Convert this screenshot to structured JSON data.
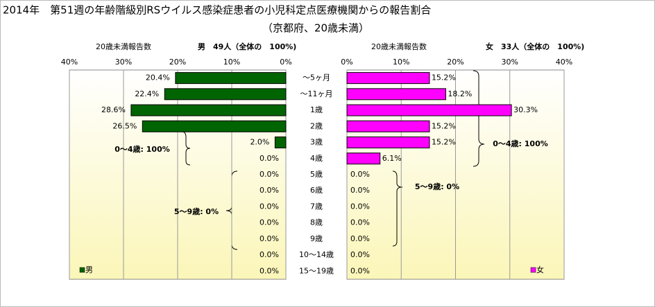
{
  "title": "2014年　第51週の年齢階級別RSウイルス感染症患者の小児科定点医療機関からの報告割合",
  "subtitle": "（京都府、20歳未満）",
  "chart_data": [
    {
      "type": "hbar",
      "header": "20歳未満報告数",
      "total_label": "男　49人（全体の　100%)",
      "categories": [
        "～5ヶ月",
        "～11ヶ月",
        "1歳",
        "2歳",
        "3歳",
        "4歳",
        "5歳",
        "6歳",
        "7歳",
        "8歳",
        "9歳",
        "10～14歳",
        "15～19歳"
      ],
      "series": [
        {
          "name": "男",
          "color": "#006400",
          "values": [
            20.4,
            22.4,
            28.6,
            26.5,
            2.0,
            0,
            0,
            0,
            0,
            0,
            0,
            0,
            0
          ],
          "value_labels": [
            "20.4%",
            "22.4%",
            "28.6%",
            "26.5%",
            "2.0%",
            "0.0%",
            "0.0%",
            "0.0%",
            "0.0%",
            "0.0%",
            "0.0%",
            "0.0%",
            "0.0%"
          ]
        }
      ],
      "xlim": [
        40,
        0
      ],
      "xticks": [
        {
          "value": 40,
          "label": "40%"
        },
        {
          "value": 30,
          "label": "30%"
        },
        {
          "value": 20,
          "label": "20%"
        },
        {
          "value": 10,
          "label": "10%"
        },
        {
          "value": 0,
          "label": "0%"
        }
      ],
      "grid": true,
      "annotations": [
        "0～4歳: 100%",
        "5～9歳: 0%"
      ]
    },
    {
      "type": "hbar",
      "header": "20歳未満報告数",
      "total_label": "女　33人（全体の　100%)",
      "series": [
        {
          "name": "女",
          "color": "#ff00ff",
          "values": [
            15.2,
            18.2,
            30.3,
            15.2,
            15.2,
            6.1,
            0,
            0,
            0,
            0,
            0,
            0,
            0
          ],
          "value_labels": [
            "15.2%",
            "18.2%",
            "30.3%",
            "15.2%",
            "15.2%",
            "6.1%",
            "0.0%",
            "0.0%",
            "0.0%",
            "0.0%",
            "0.0%",
            "0.0%",
            "0.0%"
          ]
        }
      ],
      "xlim": [
        0,
        40
      ],
      "xticks": [
        {
          "value": 0,
          "label": "0%"
        },
        {
          "value": 10,
          "label": "10%"
        },
        {
          "value": 20,
          "label": "20%"
        },
        {
          "value": 30,
          "label": "30%"
        },
        {
          "value": 40,
          "label": "40%"
        }
      ],
      "grid": true,
      "annotations": [
        "0～4歳: 100%",
        "5～9歳: 0%"
      ]
    }
  ]
}
